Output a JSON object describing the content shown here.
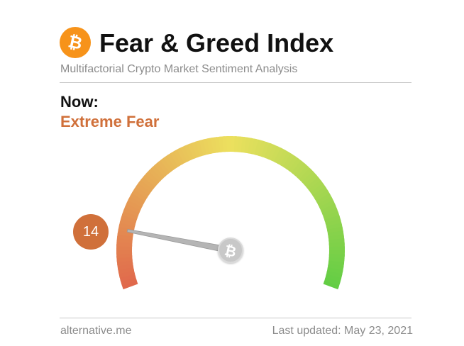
{
  "header": {
    "logo_icon": "bitcoin-icon",
    "title": "Fear & Greed Index",
    "subtitle": "Multifactorial Crypto Market Sentiment Analysis"
  },
  "now": {
    "label": "Now:",
    "classification": "Extreme Fear",
    "value": 14
  },
  "gauge": {
    "min": 0,
    "max": 100,
    "hub_icon": "bitcoin-icon"
  },
  "footer": {
    "source": "alternative.me",
    "last_updated": "Last updated: May 23, 2021"
  },
  "colors": {
    "accent": "#d0703a",
    "bitcoin": "#f7931a",
    "gauge_fear": "#e0684c",
    "gauge_neutral": "#ece05e",
    "gauge_greed": "#62cd44"
  }
}
